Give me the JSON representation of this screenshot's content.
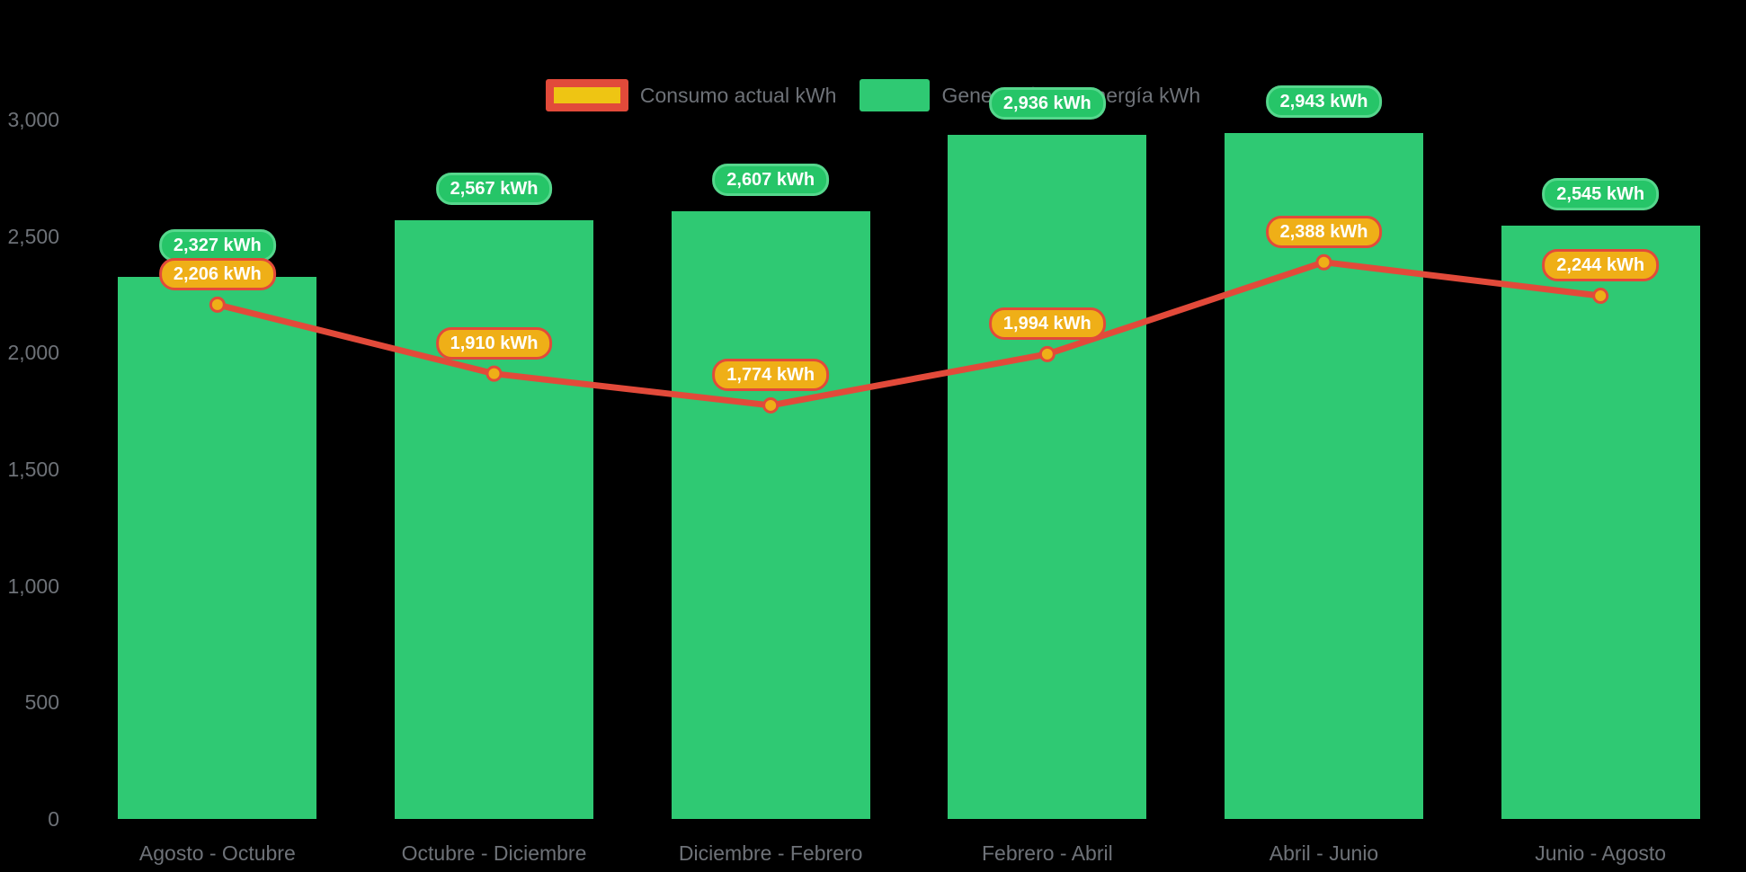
{
  "legend": {
    "items": [
      {
        "label": "Consumo actual kWh"
      },
      {
        "label": "Generación de energía kWh"
      }
    ]
  },
  "colors": {
    "background": "#000000",
    "bar_green": "#2FC973",
    "line_red": "#E24A3A",
    "marker_orange": "#EFAF17",
    "legend_yellow": "#EEC513",
    "pill_green_fill": "#26C568",
    "pill_green_border": "#55D78C",
    "pill_orange_fill": "#EFAF17",
    "pill_orange_border": "#E24A3A",
    "axis_text_gray": "#6E7278",
    "pill_text": "#FFFFFF"
  },
  "chart_data": {
    "type": "bar+line",
    "title": "",
    "xlabel": "",
    "ylabel": "",
    "categories": [
      "Agosto - Octubre",
      "Octubre - Diciembre",
      "Diciembre - Febrero",
      "Febrero - Abril",
      "Abril - Junio",
      "Junio - Agosto"
    ],
    "series": [
      {
        "name": "Generación de energía kWh",
        "type": "bar",
        "color": "#2FC973",
        "values": [
          2327,
          2567,
          2607,
          2936,
          2943,
          2545
        ],
        "labels": [
          "2,327 kWh",
          "2,567 kWh",
          "2,607 kWh",
          "2,936 kWh",
          "2,943 kWh",
          "2,545 kWh"
        ]
      },
      {
        "name": "Consumo actual kWh",
        "type": "line",
        "color": "#E24A3A",
        "marker_color": "#EFAF17",
        "values": [
          2206,
          1910,
          1774,
          1994,
          2388,
          2244
        ],
        "labels": [
          "2,206 kWh",
          "1,910 kWh",
          "1,774 kWh",
          "1,994 kWh",
          "2,388 kWh",
          "2,244 kWh"
        ]
      }
    ],
    "yticks": {
      "values": [
        0,
        500,
        1000,
        1500,
        2000,
        2500,
        3000
      ],
      "labels": [
        "0",
        "500",
        "1,000",
        "1,500",
        "2,000",
        "2,500",
        "3,000"
      ]
    },
    "ylim": [
      0,
      3000
    ],
    "grid": false,
    "legend_position": "top-center",
    "background": "#000000"
  }
}
